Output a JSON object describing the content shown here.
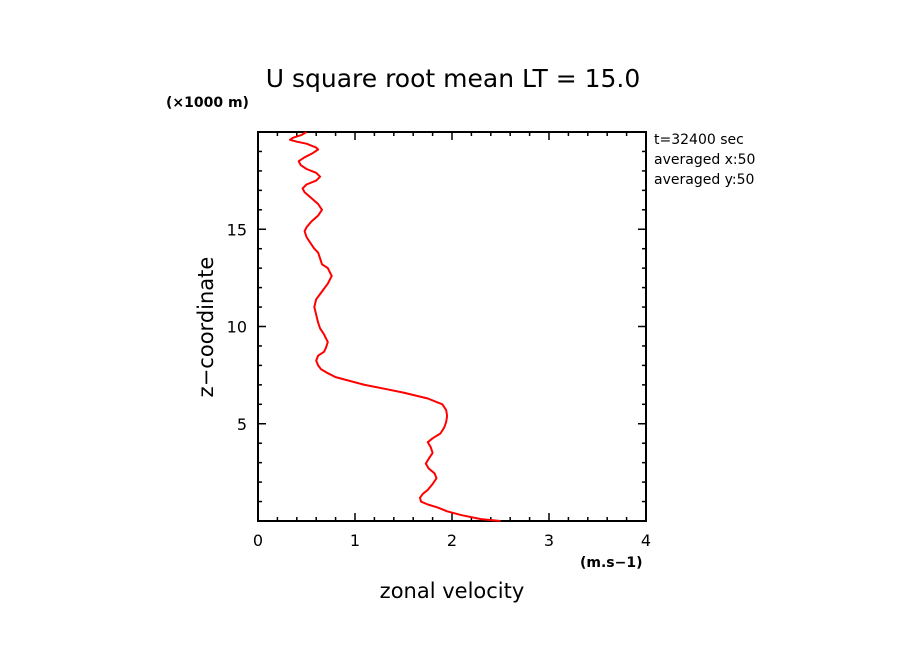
{
  "chart_data": {
    "type": "line",
    "title": "U square root mean LT = 15.0",
    "y_unit_label": "(×1000 m)",
    "x_unit_label": "(m.s−1)",
    "xlabel": "zonal velocity",
    "ylabel": "z−coordinate",
    "xlim": [
      0,
      4
    ],
    "ylim": [
      0,
      20
    ],
    "x_ticks": [
      0,
      1,
      2,
      3,
      4
    ],
    "y_ticks": [
      5,
      10,
      15
    ],
    "grid": false,
    "annotations": [
      "t=32400 sec",
      "averaged  x:50",
      "averaged  y:50"
    ],
    "series_color": "#ff0000",
    "series": [
      {
        "x": [
          2.5,
          2.3,
          2.1,
          1.95,
          1.85,
          1.75,
          1.68,
          1.67,
          1.7,
          1.75,
          1.8,
          1.84,
          1.82,
          1.76,
          1.73,
          1.76,
          1.8,
          1.78,
          1.75,
          1.8,
          1.88,
          1.92,
          1.94,
          1.95,
          1.94,
          1.9,
          1.75,
          1.5,
          1.3,
          1.1,
          0.95,
          0.8,
          0.72,
          0.65,
          0.62,
          0.6,
          0.62,
          0.68,
          0.7,
          0.72,
          0.68,
          0.64,
          0.62,
          0.6,
          0.58,
          0.6,
          0.66,
          0.72,
          0.76,
          0.72,
          0.66,
          0.64,
          0.62,
          0.58,
          0.54,
          0.5,
          0.48,
          0.5,
          0.55,
          0.62,
          0.66,
          0.62,
          0.55,
          0.48,
          0.46,
          0.5,
          0.6,
          0.64,
          0.6,
          0.5,
          0.44,
          0.42,
          0.48,
          0.56,
          0.62,
          0.6,
          0.5,
          0.4,
          0.33,
          0.36,
          0.45,
          0.5
        ],
        "y": [
          0.0,
          0.1,
          0.3,
          0.5,
          0.7,
          0.85,
          1.0,
          1.2,
          1.4,
          1.6,
          1.9,
          2.2,
          2.45,
          2.7,
          2.95,
          3.2,
          3.5,
          3.8,
          4.05,
          4.25,
          4.5,
          4.8,
          5.1,
          5.4,
          5.7,
          6.0,
          6.3,
          6.6,
          6.8,
          7.0,
          7.2,
          7.4,
          7.6,
          7.8,
          8.0,
          8.25,
          8.5,
          8.7,
          8.9,
          9.2,
          9.6,
          9.9,
          10.2,
          10.6,
          11.0,
          11.4,
          11.8,
          12.2,
          12.6,
          13.0,
          13.2,
          13.5,
          13.8,
          14.0,
          14.3,
          14.6,
          14.9,
          15.1,
          15.4,
          15.7,
          16.0,
          16.3,
          16.6,
          16.9,
          17.1,
          17.3,
          17.5,
          17.7,
          17.9,
          18.1,
          18.3,
          18.5,
          18.7,
          18.9,
          19.1,
          19.2,
          19.4,
          19.5,
          19.6,
          19.7,
          19.85,
          20.0
        ]
      }
    ]
  }
}
